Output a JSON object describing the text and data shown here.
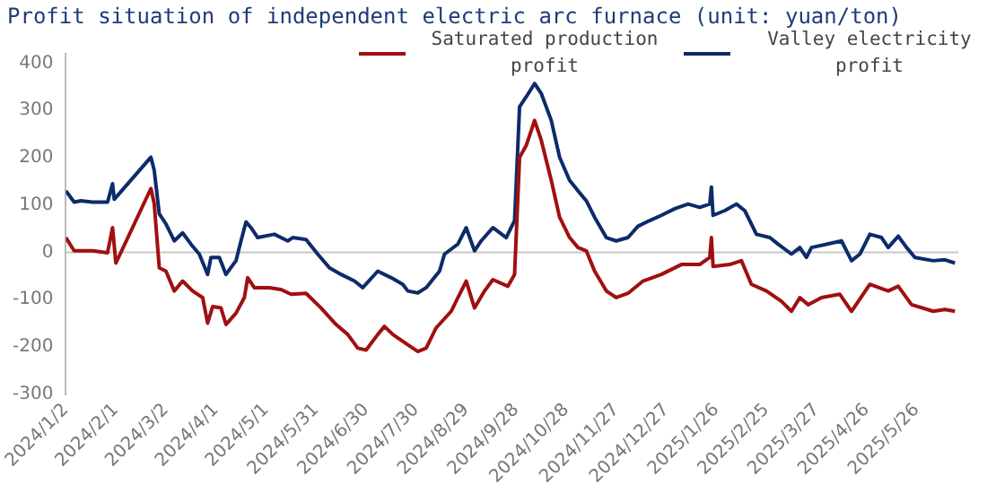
{
  "chart_data": {
    "type": "line",
    "title": "Profit situation of independent electric arc furnace (unit: yuan/ton)",
    "xlim": [
      "2024-01-02",
      "2025-06-20"
    ],
    "xticks": [
      {
        "value": "2024-01-02",
        "label": "2024/1/2"
      },
      {
        "value": "2024-02-01",
        "label": "2024/2/1"
      },
      {
        "value": "2024-03-02",
        "label": "2024/3/2"
      },
      {
        "value": "2024-04-01",
        "label": "2024/4/1"
      },
      {
        "value": "2024-05-01",
        "label": "2024/5/1"
      },
      {
        "value": "2024-05-31",
        "label": "2024/5/31"
      },
      {
        "value": "2024-06-30",
        "label": "2024/6/30"
      },
      {
        "value": "2024-07-30",
        "label": "2024/7/30"
      },
      {
        "value": "2024-08-29",
        "label": "2024/8/29"
      },
      {
        "value": "2024-09-28",
        "label": "2024/9/28"
      },
      {
        "value": "2024-10-28",
        "label": "2024/10/28"
      },
      {
        "value": "2024-11-27",
        "label": "2024/11/27"
      },
      {
        "value": "2024-12-27",
        "label": "2024/12/27"
      },
      {
        "value": "2025-01-26",
        "label": "2025/1/26"
      },
      {
        "value": "2025-02-25",
        "label": "2025/2/25"
      },
      {
        "value": "2025-03-27",
        "label": "2025/3/27"
      },
      {
        "value": "2025-04-26",
        "label": "2025/4/26"
      },
      {
        "value": "2025-05-26",
        "label": "2025/5/26"
      }
    ],
    "ylim": [
      -300,
      420
    ],
    "yticks": [
      -300,
      -200,
      -100,
      0,
      100,
      200,
      300,
      400
    ],
    "grid": false,
    "legend": "top right",
    "marker": "none",
    "line_style": "solid",
    "ref_lines": [
      {
        "axis": "y",
        "value": 0,
        "color": "#c8c8c8"
      }
    ],
    "series": [
      {
        "name": "Saturated production profit",
        "color": "#a01010",
        "x": [
          "2024-01-02",
          "2024-01-07",
          "2024-01-18",
          "2024-01-27",
          "2024-01-30",
          "2024-02-01",
          "2024-02-22",
          "2024-02-24",
          "2024-02-27",
          "2024-03-02",
          "2024-03-07",
          "2024-03-12",
          "2024-03-18",
          "2024-03-24",
          "2024-03-27",
          "2024-03-30",
          "2024-04-04",
          "2024-04-07",
          "2024-04-13",
          "2024-04-18",
          "2024-04-20",
          "2024-04-24",
          "2024-05-03",
          "2024-05-10",
          "2024-05-16",
          "2024-05-25",
          "2024-06-03",
          "2024-06-12",
          "2024-06-19",
          "2024-06-25",
          "2024-06-30",
          "2024-07-07",
          "2024-07-11",
          "2024-07-16",
          "2024-07-25",
          "2024-07-31",
          "2024-08-05",
          "2024-08-11",
          "2024-08-20",
          "2024-08-29",
          "2024-09-03",
          "2024-09-09",
          "2024-09-14",
          "2024-09-23",
          "2024-09-27",
          "2024-09-30",
          "2024-10-04",
          "2024-10-09",
          "2024-10-13",
          "2024-10-19",
          "2024-10-24",
          "2024-10-30",
          "2024-11-04",
          "2024-11-09",
          "2024-11-14",
          "2024-11-21",
          "2024-11-27",
          "2024-12-04",
          "2024-12-13",
          "2024-12-24",
          "2025-01-05",
          "2025-01-16",
          "2025-01-22",
          "2025-01-23",
          "2025-01-24",
          "2025-02-03",
          "2025-02-10",
          "2025-02-16",
          "2025-02-25",
          "2025-03-06",
          "2025-03-12",
          "2025-03-17",
          "2025-03-22",
          "2025-03-30",
          "2025-04-10",
          "2025-04-17",
          "2025-04-28",
          "2025-05-09",
          "2025-05-15",
          "2025-05-23",
          "2025-06-05",
          "2025-06-12",
          "2025-06-18"
        ],
        "values": [
          31,
          3,
          3,
          -1,
          52,
          -23,
          135,
          102,
          -33,
          -40,
          -82,
          -61,
          -82,
          -96,
          -150,
          -115,
          -118,
          -153,
          -129,
          -96,
          -54,
          -75,
          -75,
          -79,
          -89,
          -87,
          -118,
          -153,
          -174,
          -203,
          -207,
          -174,
          -157,
          -174,
          -196,
          -210,
          -203,
          -160,
          -125,
          -61,
          -118,
          -82,
          -58,
          -72,
          -47,
          201,
          226,
          279,
          237,
          152,
          74,
          31,
          10,
          3,
          -40,
          -82,
          -96,
          -87,
          -61,
          -47,
          -26,
          -26,
          -11,
          31,
          -30,
          -26,
          -18,
          -68,
          -82,
          -104,
          -125,
          -96,
          -111,
          -96,
          -89,
          -125,
          -68,
          -82,
          -72,
          -111,
          -125,
          -121,
          -125
        ]
      },
      {
        "name": "Valley electricity profit",
        "color": "#0d2b6b",
        "x": [
          "2024-01-02",
          "2024-01-07",
          "2024-01-11",
          "2024-01-18",
          "2024-01-27",
          "2024-01-30",
          "2024-01-31",
          "2024-02-22",
          "2024-02-24",
          "2024-02-27",
          "2024-03-02",
          "2024-03-07",
          "2024-03-12",
          "2024-03-17",
          "2024-03-22",
          "2024-03-27",
          "2024-03-29",
          "2024-04-03",
          "2024-04-07",
          "2024-04-13",
          "2024-04-16",
          "2024-04-19",
          "2024-04-22",
          "2024-04-26",
          "2024-05-06",
          "2024-05-14",
          "2024-05-17",
          "2024-05-25",
          "2024-06-01",
          "2024-06-08",
          "2024-06-15",
          "2024-06-23",
          "2024-06-28",
          "2024-07-07",
          "2024-07-15",
          "2024-07-22",
          "2024-07-25",
          "2024-07-31",
          "2024-08-05",
          "2024-08-13",
          "2024-08-16",
          "2024-08-24",
          "2024-08-29",
          "2024-09-03",
          "2024-09-07",
          "2024-09-14",
          "2024-09-22",
          "2024-09-27",
          "2024-09-30",
          "2024-10-04",
          "2024-10-09",
          "2024-10-13",
          "2024-10-19",
          "2024-10-24",
          "2024-10-30",
          "2024-11-04",
          "2024-11-09",
          "2024-11-14",
          "2024-11-21",
          "2024-11-27",
          "2024-12-04",
          "2024-12-10",
          "2024-12-17",
          "2024-12-24",
          "2025-01-01",
          "2025-01-09",
          "2025-01-16",
          "2025-01-22",
          "2025-01-23",
          "2025-01-24",
          "2025-01-31",
          "2025-02-07",
          "2025-02-12",
          "2025-02-19",
          "2025-02-27",
          "2025-03-04",
          "2025-03-12",
          "2025-03-17",
          "2025-03-21",
          "2025-03-24",
          "2025-04-02",
          "2025-04-11",
          "2025-04-17",
          "2025-04-22",
          "2025-04-28",
          "2025-05-05",
          "2025-05-09",
          "2025-05-15",
          "2025-05-20",
          "2025-05-25",
          "2025-06-05",
          "2025-06-12",
          "2025-06-18"
        ],
        "values": [
          130,
          106,
          109,
          106,
          106,
          145,
          112,
          201,
          173,
          81,
          60,
          24,
          41,
          17,
          -4,
          -47,
          -11,
          -11,
          -47,
          -18,
          24,
          64,
          52,
          31,
          38,
          24,
          31,
          27,
          -4,
          -33,
          -47,
          -61,
          -75,
          -40,
          -54,
          -68,
          -82,
          -86,
          -75,
          -40,
          -4,
          17,
          52,
          3,
          24,
          52,
          31,
          67,
          308,
          329,
          357,
          336,
          279,
          201,
          152,
          130,
          109,
          74,
          31,
          24,
          31,
          55,
          67,
          78,
          92,
          102,
          95,
          102,
          138,
          78,
          88,
          102,
          88,
          38,
          31,
          17,
          -4,
          10,
          -11,
          10,
          17,
          24,
          -18,
          -4,
          38,
          31,
          10,
          34,
          10,
          -11,
          -18,
          -16,
          -23
        ]
      }
    ]
  }
}
